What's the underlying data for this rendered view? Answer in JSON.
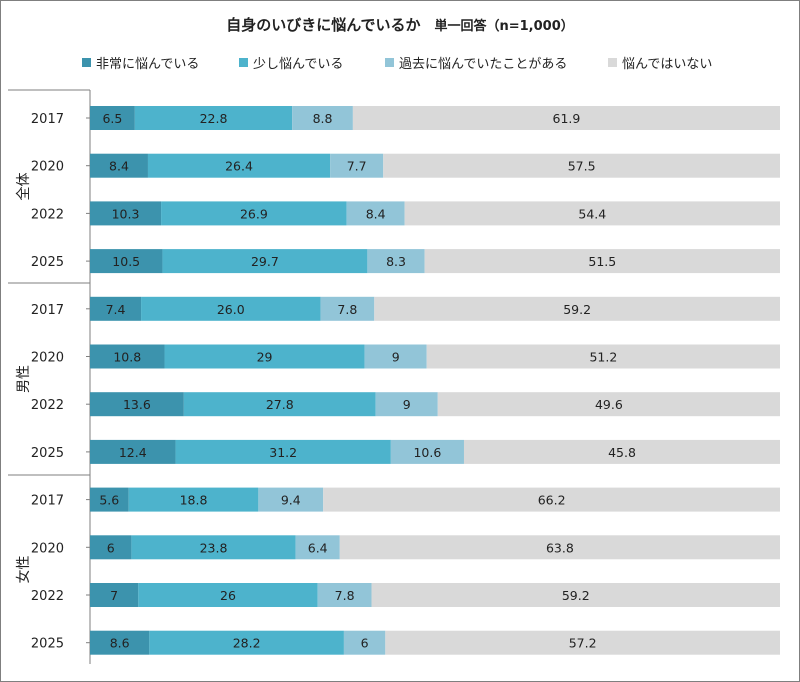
{
  "title": "自身のいびきに悩んでいるか",
  "subtitle": "単一回答（n=1,000）",
  "chart_data": {
    "type": "bar",
    "orientation": "horizontal",
    "stacked": true,
    "unit": "%",
    "xlim": [
      0,
      100
    ],
    "legend_position": "top",
    "grid": false,
    "series": [
      {
        "name": "非常に悩んでいる",
        "color": "#3c93ad"
      },
      {
        "name": "少し悩んでいる",
        "color": "#4db3cc"
      },
      {
        "name": "過去に悩んでいたことがある",
        "color": "#92c5d8"
      },
      {
        "name": "悩んではいない",
        "color": "#d9d9d9"
      }
    ],
    "groups": [
      {
        "label": "全体",
        "rows": [
          {
            "year": "2017",
            "values": [
              "6.5",
              "22.8",
              "8.8",
              "61.9"
            ]
          },
          {
            "year": "2020",
            "values": [
              "8.4",
              "26.4",
              "7.7",
              "57.5"
            ]
          },
          {
            "year": "2022",
            "values": [
              "10.3",
              "26.9",
              "8.4",
              "54.4"
            ]
          },
          {
            "year": "2025",
            "values": [
              "10.5",
              "29.7",
              "8.3",
              "51.5"
            ]
          }
        ]
      },
      {
        "label": "男性",
        "rows": [
          {
            "year": "2017",
            "values": [
              "7.4",
              "26.0",
              "7.8",
              "59.2"
            ]
          },
          {
            "year": "2020",
            "values": [
              "10.8",
              "29",
              "9",
              "51.2"
            ]
          },
          {
            "year": "2022",
            "values": [
              "13.6",
              "27.8",
              "9",
              "49.6"
            ]
          },
          {
            "year": "2025",
            "values": [
              "12.4",
              "31.2",
              "10.6",
              "45.8"
            ]
          }
        ]
      },
      {
        "label": "女性",
        "rows": [
          {
            "year": "2017",
            "values": [
              "5.6",
              "18.8",
              "9.4",
              "66.2"
            ]
          },
          {
            "year": "2020",
            "values": [
              "6",
              "23.8",
              "6.4",
              "63.8"
            ]
          },
          {
            "year": "2022",
            "values": [
              "7",
              "26",
              "7.8",
              "59.2"
            ]
          },
          {
            "year": "2025",
            "values": [
              "8.6",
              "28.2",
              "6",
              "57.2"
            ]
          }
        ]
      }
    ]
  }
}
